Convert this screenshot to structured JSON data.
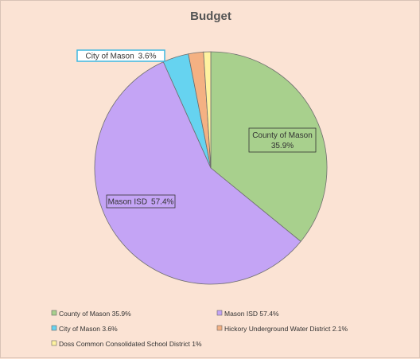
{
  "chart_data": {
    "type": "pie",
    "title": "Budget",
    "slices": [
      {
        "name": "County of Mason",
        "value": 35.9,
        "color": "#a8d08d",
        "label": "County of Mason",
        "pct_label": "35.9%"
      },
      {
        "name": "Mason ISD",
        "value": 57.4,
        "color": "#c4a4f5",
        "label": "Mason ISD",
        "pct_label": "57.4%"
      },
      {
        "name": "City of Mason",
        "value": 3.6,
        "color": "#66d3f0",
        "label": "City of Mason",
        "pct_label": "3.6%"
      },
      {
        "name": "Hickory Underground Water District",
        "value": 2.1,
        "color": "#f4b183",
        "label": "",
        "pct_label": ""
      },
      {
        "name": "Doss Common Consolidated School District",
        "value": 1,
        "color": "#fff2a0",
        "label": "",
        "pct_label": ""
      }
    ],
    "legend": {
      "placement": "bottom",
      "entries": [
        {
          "text": "County of Mason  35.9%",
          "color": "#a8d08d"
        },
        {
          "text": "Mason ISD  57.4%",
          "color": "#c4a4f5"
        },
        {
          "text": "City of Mason  3.6%",
          "color": "#66d3f0"
        },
        {
          "text": "Hickory Underground Water District  2.1%",
          "color": "#f4b183"
        },
        {
          "text": "Doss Common Consolidated School District 1%",
          "color": "#fff2a0"
        }
      ]
    }
  }
}
